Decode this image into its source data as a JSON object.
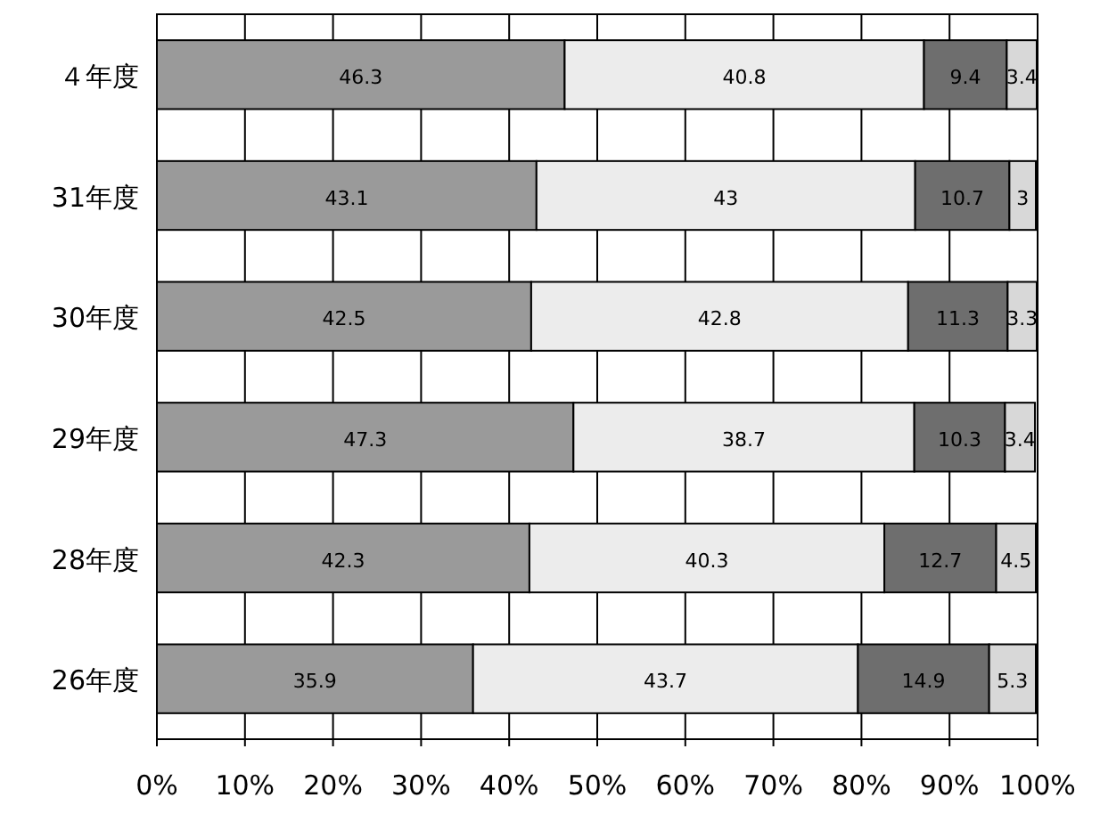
{
  "chart_data": {
    "type": "bar",
    "orientation": "horizontal",
    "stacked": true,
    "categories": [
      "４年度",
      "31年度",
      "30年度",
      "29年度",
      "28年度",
      "26年度"
    ],
    "series": [
      {
        "color": "#9a9a9a",
        "values": [
          46.3,
          43.1,
          42.5,
          47.3,
          42.3,
          35.9
        ]
      },
      {
        "color": "#ececec",
        "values": [
          40.8,
          43.0,
          42.8,
          38.7,
          40.3,
          43.7
        ]
      },
      {
        "color": "#6e6e6e",
        "values": [
          9.4,
          10.7,
          11.3,
          10.3,
          12.7,
          14.9
        ]
      },
      {
        "color": "#d8d8d8",
        "values": [
          3.4,
          3.0,
          3.3,
          3.4,
          4.5,
          5.3
        ]
      }
    ],
    "xlim": [
      0,
      100
    ],
    "xticks": [
      {
        "value": 0,
        "label": "0%"
      },
      {
        "value": 10,
        "label": "10%"
      },
      {
        "value": 20,
        "label": "20%"
      },
      {
        "value": 30,
        "label": "30%"
      },
      {
        "value": 40,
        "label": "40%"
      },
      {
        "value": 50,
        "label": "50%"
      },
      {
        "value": 60,
        "label": "60%"
      },
      {
        "value": 70,
        "label": "70%"
      },
      {
        "value": 80,
        "label": "80%"
      },
      {
        "value": 90,
        "label": "90%"
      },
      {
        "value": 100,
        "label": "100%"
      }
    ],
    "grid": "x",
    "data_labels": true
  }
}
